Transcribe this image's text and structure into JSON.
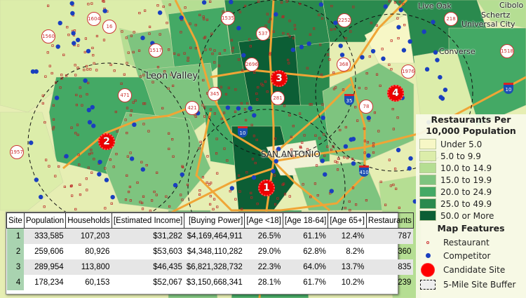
{
  "places": {
    "live_oak": "Live Oak",
    "cibolo": "Cibolo",
    "schertz": "Schertz",
    "universal_city": "Universal City",
    "converse": "Converse",
    "leon_valley": "Leon Valley",
    "san_antonio": "SAN ANTONIO"
  },
  "shields": [
    "1604",
    "16",
    "1560",
    "1535",
    "537",
    "2252",
    "218",
    "1518",
    "1517",
    "2696",
    "368",
    "1976",
    "471",
    "345",
    "281",
    "78",
    "421",
    "1957"
  ],
  "interstates": [
    "35",
    "10",
    "10",
    "410"
  ],
  "sites": [
    "1",
    "2",
    "3",
    "4"
  ],
  "table": {
    "headers": [
      "Site",
      "Population",
      "Households",
      "[Estimated Income]",
      "[Buying Power]",
      "[Age <18]",
      "[Age 18-64]",
      "[Age 65+]",
      "Restaurants"
    ],
    "rows": [
      [
        "1",
        "333,585",
        "107,203",
        "$31,282",
        "$4,169,464,911",
        "26.5%",
        "61.1%",
        "12.4%",
        "787"
      ],
      [
        "2",
        "259,606",
        "80,926",
        "$53,603",
        "$4,348,110,282",
        "29.0%",
        "62.8%",
        "8.2%",
        "360"
      ],
      [
        "3",
        "289,954",
        "113,800",
        "$46,435",
        "$6,821,328,732",
        "22.3%",
        "64.0%",
        "13.7%",
        "835"
      ],
      [
        "4",
        "178,234",
        "60,153",
        "$52,067",
        "$3,150,668,341",
        "28.1%",
        "61.7%",
        "10.2%",
        "239"
      ]
    ]
  },
  "legend": {
    "title1": "Restaurants Per",
    "title2": "10,000 Population",
    "classes": [
      {
        "label": "Under 5.0",
        "color": "#f7f7c6"
      },
      {
        "label": "5.0 to 9.9",
        "color": "#dcedaa"
      },
      {
        "label": "10.0 to 14.9",
        "color": "#b5de93"
      },
      {
        "label": "15.0 to 19.9",
        "color": "#7ec47f"
      },
      {
        "label": "20.0 to 24.9",
        "color": "#44a965"
      },
      {
        "label": "25.0 to 49.9",
        "color": "#2a8a4e"
      },
      {
        "label": "50.0 or More",
        "color": "#0c5e35"
      }
    ],
    "features_title": "Map Features",
    "features": [
      "Restaurant",
      "Competitor",
      "Candidate Site",
      "5-Mile Site Buffer"
    ]
  }
}
